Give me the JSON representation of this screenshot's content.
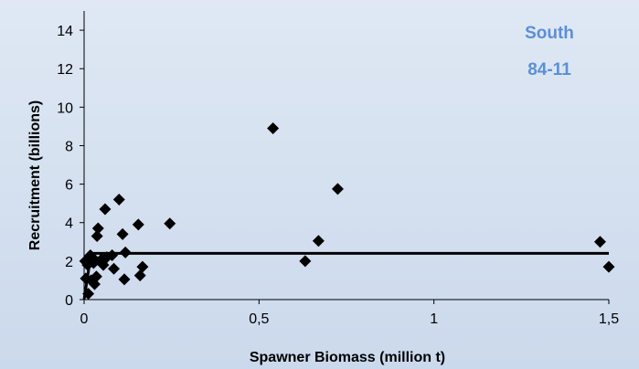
{
  "chart_data": {
    "type": "scatter",
    "title": "",
    "xlabel": "Spawner Biomass (million t)",
    "ylabel": "Recruitment (billions)",
    "xlim": [
      0,
      1.5
    ],
    "ylim": [
      0,
      15
    ],
    "x_ticks": [
      0,
      0.5,
      1,
      1.5
    ],
    "x_tick_labels": [
      "0",
      "0,5",
      "1",
      "1,5"
    ],
    "y_ticks": [
      0,
      2,
      4,
      6,
      8,
      10,
      12,
      14
    ],
    "y_tick_labels": [
      "0",
      "2",
      "4",
      "6",
      "8",
      "10",
      "12",
      "14"
    ],
    "grid": false,
    "annotations": [
      "South",
      "84-11"
    ],
    "annotation_color": "#5b8fd6",
    "marker_color": "#000000",
    "series": [
      {
        "marker": "diamond",
        "points": [
          {
            "x": 0.003,
            "y": 2.0
          },
          {
            "x": 0.005,
            "y": 1.1
          },
          {
            "x": 0.01,
            "y": 1.8
          },
          {
            "x": 0.012,
            "y": 0.3
          },
          {
            "x": 0.018,
            "y": 2.3
          },
          {
            "x": 0.02,
            "y": 1.0
          },
          {
            "x": 0.023,
            "y": 2.2
          },
          {
            "x": 0.027,
            "y": 1.9
          },
          {
            "x": 0.03,
            "y": 0.8
          },
          {
            "x": 0.035,
            "y": 1.2
          },
          {
            "x": 0.037,
            "y": 3.3
          },
          {
            "x": 0.04,
            "y": 3.7
          },
          {
            "x": 0.045,
            "y": 2.0
          },
          {
            "x": 0.05,
            "y": 2.1
          },
          {
            "x": 0.055,
            "y": 1.8
          },
          {
            "x": 0.06,
            "y": 4.7
          },
          {
            "x": 0.065,
            "y": 2.2
          },
          {
            "x": 0.08,
            "y": 2.3
          },
          {
            "x": 0.085,
            "y": 1.6
          },
          {
            "x": 0.1,
            "y": 5.2
          },
          {
            "x": 0.11,
            "y": 3.4
          },
          {
            "x": 0.115,
            "y": 1.05
          },
          {
            "x": 0.118,
            "y": 2.45
          },
          {
            "x": 0.155,
            "y": 3.9
          },
          {
            "x": 0.16,
            "y": 1.25
          },
          {
            "x": 0.167,
            "y": 1.7
          },
          {
            "x": 0.245,
            "y": 3.95
          },
          {
            "x": 0.54,
            "y": 8.9
          },
          {
            "x": 0.632,
            "y": 2.0
          },
          {
            "x": 0.67,
            "y": 3.05
          },
          {
            "x": 0.725,
            "y": 5.75
          },
          {
            "x": 1.475,
            "y": 3.0
          },
          {
            "x": 1.5,
            "y": 1.7
          }
        ]
      },
      {
        "type": "line",
        "points": [
          {
            "x": 0,
            "y": 0
          },
          {
            "x": 0.02,
            "y": 2.4
          },
          {
            "x": 1.5,
            "y": 2.4
          }
        ]
      }
    ]
  }
}
